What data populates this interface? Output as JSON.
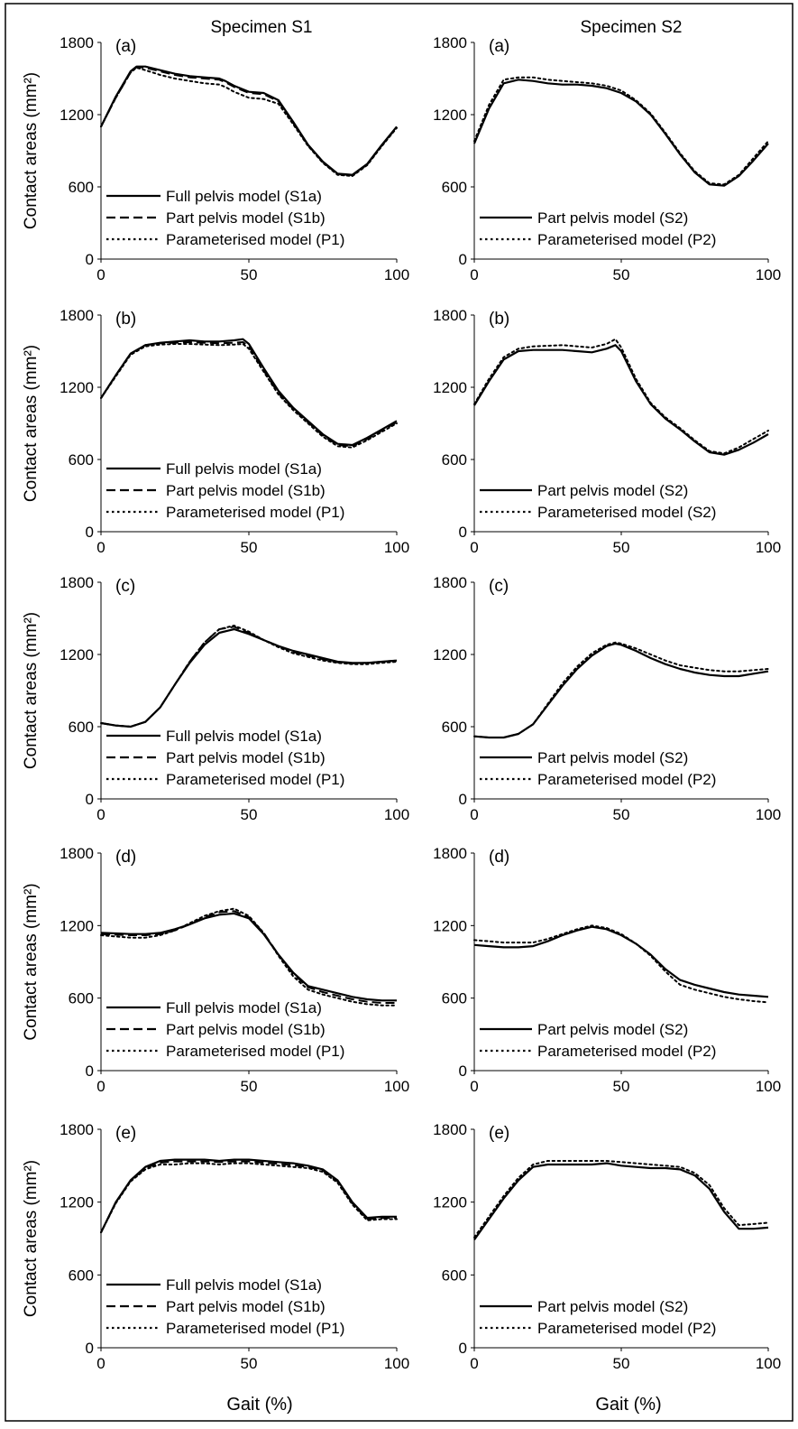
{
  "figure": {
    "column_titles": [
      "Specimen S1",
      "Specimen S2"
    ],
    "ylabel": "Contact areas (mm²)",
    "xlabel": "Gait (%)"
  },
  "chart_data": [
    {
      "type": "line",
      "panel_label": "(a)",
      "xlim": [
        0,
        100
      ],
      "ylim": [
        0,
        1800
      ],
      "xticks": [
        "0",
        "50",
        "100"
      ],
      "yticks": [
        "0",
        "600",
        "1200",
        "1800"
      ],
      "legend_position": "bottom-left",
      "x": [
        0,
        5,
        10,
        12,
        15,
        20,
        25,
        30,
        35,
        40,
        42,
        45,
        50,
        55,
        60,
        65,
        70,
        75,
        80,
        85,
        90,
        95,
        100
      ],
      "series": [
        {
          "name": "Full pelvis model (S1a)",
          "style": "solid",
          "values": [
            1100,
            1350,
            1560,
            1600,
            1600,
            1570,
            1540,
            1520,
            1510,
            1500,
            1480,
            1440,
            1390,
            1380,
            1320,
            1140,
            950,
            810,
            710,
            700,
            790,
            950,
            1100
          ]
        },
        {
          "name": "Part pelvis model (S1b)",
          "style": "dashed",
          "values": [
            1100,
            1340,
            1550,
            1595,
            1590,
            1560,
            1530,
            1510,
            1500,
            1490,
            1470,
            1430,
            1380,
            1370,
            1310,
            1130,
            945,
            805,
            705,
            695,
            785,
            945,
            1095
          ]
        },
        {
          "name": "Parameterised model (P1)",
          "style": "dotted",
          "values": [
            1100,
            1340,
            1550,
            1590,
            1570,
            1530,
            1500,
            1480,
            1460,
            1450,
            1430,
            1390,
            1340,
            1330,
            1290,
            1120,
            940,
            800,
            700,
            690,
            780,
            940,
            1090
          ]
        }
      ]
    },
    {
      "type": "line",
      "panel_label": "(a)",
      "xlim": [
        0,
        100
      ],
      "ylim": [
        0,
        1800
      ],
      "xticks": [
        "0",
        "50",
        "100"
      ],
      "yticks": [
        "0",
        "600",
        "1200",
        "1800"
      ],
      "legend_position": "bottom-left",
      "x": [
        0,
        5,
        10,
        15,
        20,
        25,
        30,
        35,
        40,
        45,
        50,
        55,
        60,
        65,
        70,
        75,
        80,
        85,
        90,
        95,
        100
      ],
      "series": [
        {
          "name": "Part pelvis model (S2)",
          "style": "solid",
          "values": [
            960,
            1250,
            1460,
            1490,
            1480,
            1460,
            1450,
            1450,
            1440,
            1420,
            1380,
            1310,
            1200,
            1040,
            870,
            720,
            620,
            610,
            690,
            820,
            960
          ]
        },
        {
          "name": "Parameterised model (P2)",
          "style": "dotted",
          "values": [
            980,
            1280,
            1490,
            1510,
            1510,
            1490,
            1480,
            1470,
            1460,
            1440,
            1400,
            1320,
            1210,
            1050,
            880,
            730,
            630,
            620,
            700,
            840,
            980
          ]
        }
      ]
    },
    {
      "type": "line",
      "panel_label": "(b)",
      "xlim": [
        0,
        100
      ],
      "ylim": [
        0,
        1800
      ],
      "xticks": [
        "0",
        "50",
        "100"
      ],
      "yticks": [
        "0",
        "600",
        "1200",
        "1800"
      ],
      "legend_position": "bottom-left",
      "x": [
        0,
        5,
        10,
        15,
        20,
        25,
        30,
        35,
        40,
        45,
        48,
        50,
        55,
        60,
        65,
        70,
        75,
        80,
        85,
        90,
        95,
        100
      ],
      "series": [
        {
          "name": "Full pelvis model (S1a)",
          "style": "solid",
          "values": [
            1110,
            1300,
            1480,
            1550,
            1570,
            1580,
            1590,
            1580,
            1580,
            1590,
            1600,
            1560,
            1360,
            1170,
            1030,
            920,
            810,
            730,
            720,
            780,
            850,
            920
          ]
        },
        {
          "name": "Part pelvis model (S1b)",
          "style": "dashed",
          "values": [
            1110,
            1300,
            1480,
            1550,
            1565,
            1570,
            1575,
            1570,
            1565,
            1570,
            1575,
            1540,
            1340,
            1150,
            1020,
            910,
            800,
            720,
            710,
            770,
            840,
            910
          ]
        },
        {
          "name": "Parameterised model (P1)",
          "style": "dotted",
          "values": [
            1110,
            1290,
            1470,
            1540,
            1555,
            1560,
            1560,
            1555,
            1550,
            1555,
            1560,
            1520,
            1330,
            1140,
            1010,
            900,
            790,
            710,
            700,
            760,
            830,
            900
          ]
        }
      ]
    },
    {
      "type": "line",
      "panel_label": "(b)",
      "xlim": [
        0,
        100
      ],
      "ylim": [
        0,
        1800
      ],
      "xticks": [
        "0",
        "50",
        "100"
      ],
      "yticks": [
        "0",
        "600",
        "1200",
        "1800"
      ],
      "legend_position": "bottom-left",
      "x": [
        0,
        5,
        10,
        15,
        20,
        25,
        30,
        35,
        40,
        45,
        48,
        50,
        55,
        60,
        65,
        70,
        75,
        80,
        85,
        90,
        95,
        100
      ],
      "series": [
        {
          "name": "Part pelvis model (S2)",
          "style": "solid",
          "values": [
            1050,
            1250,
            1430,
            1500,
            1510,
            1510,
            1510,
            1500,
            1490,
            1520,
            1550,
            1500,
            1250,
            1060,
            940,
            850,
            750,
            660,
            640,
            680,
            740,
            810
          ]
        },
        {
          "name": "Parameterised model (S2)",
          "style": "dotted",
          "values": [
            1060,
            1270,
            1450,
            1520,
            1540,
            1545,
            1550,
            1540,
            1530,
            1560,
            1600,
            1530,
            1270,
            1070,
            950,
            860,
            760,
            670,
            650,
            700,
            770,
            840
          ]
        }
      ]
    },
    {
      "type": "line",
      "panel_label": "(c)",
      "xlim": [
        0,
        100
      ],
      "ylim": [
        0,
        1800
      ],
      "xticks": [
        "0",
        "50",
        "100"
      ],
      "yticks": [
        "0",
        "600",
        "1200",
        "1800"
      ],
      "legend_position": "bottom-left",
      "x": [
        0,
        5,
        10,
        15,
        20,
        25,
        30,
        35,
        40,
        45,
        50,
        55,
        60,
        65,
        70,
        75,
        80,
        85,
        90,
        95,
        100
      ],
      "series": [
        {
          "name": "Full pelvis model (S1a)",
          "style": "solid",
          "values": [
            630,
            610,
            600,
            640,
            760,
            950,
            1130,
            1280,
            1380,
            1410,
            1370,
            1320,
            1270,
            1230,
            1200,
            1170,
            1140,
            1130,
            1130,
            1140,
            1150
          ]
        },
        {
          "name": "Part pelvis model (S1b)",
          "style": "dashed",
          "values": [
            630,
            610,
            600,
            640,
            760,
            950,
            1140,
            1300,
            1410,
            1430,
            1380,
            1320,
            1270,
            1220,
            1190,
            1160,
            1135,
            1125,
            1130,
            1140,
            1150
          ]
        },
        {
          "name": "Parameterised model (P1)",
          "style": "dotted",
          "values": [
            630,
            610,
            600,
            640,
            760,
            950,
            1140,
            1300,
            1410,
            1440,
            1390,
            1320,
            1260,
            1210,
            1180,
            1150,
            1130,
            1120,
            1120,
            1130,
            1140
          ]
        }
      ]
    },
    {
      "type": "line",
      "panel_label": "(c)",
      "xlim": [
        0,
        100
      ],
      "ylim": [
        0,
        1800
      ],
      "xticks": [
        "0",
        "50",
        "100"
      ],
      "yticks": [
        "0",
        "600",
        "1200",
        "1800"
      ],
      "legend_position": "bottom-left",
      "x": [
        0,
        5,
        10,
        15,
        20,
        25,
        30,
        35,
        40,
        45,
        48,
        50,
        55,
        60,
        65,
        70,
        75,
        80,
        85,
        90,
        95,
        100
      ],
      "series": [
        {
          "name": "Part pelvis model (S2)",
          "style": "solid",
          "values": [
            520,
            510,
            510,
            540,
            620,
            780,
            940,
            1080,
            1190,
            1270,
            1290,
            1280,
            1230,
            1170,
            1120,
            1080,
            1050,
            1030,
            1020,
            1020,
            1040,
            1060
          ]
        },
        {
          "name": "Parameterised model (P2)",
          "style": "dotted",
          "values": [
            520,
            510,
            510,
            540,
            620,
            790,
            960,
            1100,
            1210,
            1280,
            1300,
            1290,
            1250,
            1200,
            1150,
            1110,
            1090,
            1070,
            1060,
            1060,
            1070,
            1080
          ]
        }
      ]
    },
    {
      "type": "line",
      "panel_label": "(d)",
      "xlim": [
        0,
        100
      ],
      "ylim": [
        0,
        1800
      ],
      "xticks": [
        "0",
        "50",
        "100"
      ],
      "yticks": [
        "0",
        "600",
        "1200",
        "1800"
      ],
      "legend_position": "bottom-left",
      "x": [
        0,
        5,
        10,
        15,
        20,
        25,
        30,
        35,
        40,
        45,
        50,
        55,
        60,
        65,
        70,
        75,
        80,
        85,
        90,
        95,
        100
      ],
      "series": [
        {
          "name": "Full pelvis model (S1a)",
          "style": "solid",
          "values": [
            1140,
            1135,
            1130,
            1130,
            1140,
            1170,
            1210,
            1260,
            1290,
            1300,
            1260,
            1130,
            960,
            810,
            700,
            670,
            640,
            610,
            590,
            580,
            580
          ]
        },
        {
          "name": "Part pelvis model (S1b)",
          "style": "dashed",
          "values": [
            1130,
            1125,
            1120,
            1120,
            1130,
            1160,
            1210,
            1270,
            1310,
            1320,
            1270,
            1140,
            960,
            800,
            690,
            650,
            620,
            590,
            570,
            560,
            560
          ]
        },
        {
          "name": "Parameterised model (P1)",
          "style": "dotted",
          "values": [
            1120,
            1110,
            1100,
            1100,
            1120,
            1160,
            1220,
            1280,
            1320,
            1340,
            1280,
            1140,
            950,
            780,
            670,
            630,
            600,
            570,
            550,
            540,
            540
          ]
        }
      ]
    },
    {
      "type": "line",
      "panel_label": "(d)",
      "xlim": [
        0,
        100
      ],
      "ylim": [
        0,
        1800
      ],
      "xticks": [
        "0",
        "50",
        "100"
      ],
      "yticks": [
        "0",
        "600",
        "1200",
        "1800"
      ],
      "legend_position": "bottom-left",
      "x": [
        0,
        5,
        10,
        15,
        20,
        25,
        30,
        35,
        40,
        45,
        50,
        55,
        60,
        65,
        70,
        75,
        80,
        85,
        90,
        95,
        100
      ],
      "series": [
        {
          "name": "Part pelvis model (S2)",
          "style": "solid",
          "values": [
            1040,
            1030,
            1020,
            1020,
            1030,
            1070,
            1120,
            1160,
            1190,
            1170,
            1120,
            1050,
            960,
            840,
            750,
            710,
            680,
            650,
            630,
            620,
            610
          ]
        },
        {
          "name": "Parameterised model (P2)",
          "style": "dotted",
          "values": [
            1080,
            1070,
            1060,
            1060,
            1060,
            1090,
            1130,
            1170,
            1200,
            1180,
            1130,
            1050,
            950,
            820,
            710,
            670,
            640,
            610,
            590,
            575,
            565
          ]
        }
      ]
    },
    {
      "type": "line",
      "panel_label": "(e)",
      "xlim": [
        0,
        100
      ],
      "ylim": [
        0,
        1800
      ],
      "xticks": [
        "0",
        "50",
        "100"
      ],
      "yticks": [
        "0",
        "600",
        "1200",
        "1800"
      ],
      "legend_position": "bottom-left",
      "x": [
        0,
        5,
        10,
        15,
        20,
        25,
        30,
        35,
        40,
        45,
        50,
        55,
        60,
        65,
        70,
        75,
        80,
        85,
        90,
        95,
        100
      ],
      "series": [
        {
          "name": "Full pelvis model (S1a)",
          "style": "solid",
          "values": [
            950,
            1200,
            1380,
            1490,
            1540,
            1550,
            1550,
            1550,
            1540,
            1550,
            1550,
            1540,
            1530,
            1520,
            1500,
            1470,
            1380,
            1200,
            1070,
            1080,
            1080
          ]
        },
        {
          "name": "Part pelvis model (S1b)",
          "style": "dashed",
          "values": [
            950,
            1195,
            1375,
            1480,
            1525,
            1535,
            1535,
            1535,
            1530,
            1535,
            1535,
            1525,
            1515,
            1505,
            1490,
            1460,
            1370,
            1190,
            1060,
            1070,
            1070
          ]
        },
        {
          "name": "Parameterised model (P1)",
          "style": "dotted",
          "values": [
            950,
            1190,
            1370,
            1470,
            1510,
            1510,
            1520,
            1520,
            1510,
            1520,
            1520,
            1510,
            1500,
            1490,
            1480,
            1450,
            1360,
            1180,
            1050,
            1060,
            1060
          ]
        }
      ]
    },
    {
      "type": "line",
      "panel_label": "(e)",
      "xlim": [
        0,
        100
      ],
      "ylim": [
        0,
        1800
      ],
      "xticks": [
        "0",
        "50",
        "100"
      ],
      "yticks": [
        "0",
        "600",
        "1200",
        "1800"
      ],
      "legend_position": "bottom-left",
      "x": [
        0,
        5,
        10,
        15,
        20,
        25,
        30,
        35,
        40,
        45,
        50,
        55,
        60,
        65,
        70,
        75,
        80,
        85,
        90,
        95,
        100
      ],
      "series": [
        {
          "name": "Part pelvis model (S2)",
          "style": "solid",
          "values": [
            890,
            1060,
            1230,
            1380,
            1490,
            1510,
            1510,
            1510,
            1510,
            1520,
            1500,
            1490,
            1480,
            1480,
            1470,
            1420,
            1310,
            1120,
            980,
            980,
            990
          ]
        },
        {
          "name": "Parameterised model (P2)",
          "style": "dotted",
          "values": [
            910,
            1080,
            1250,
            1400,
            1510,
            1540,
            1540,
            1540,
            1540,
            1540,
            1530,
            1520,
            1510,
            1500,
            1490,
            1440,
            1340,
            1150,
            1010,
            1020,
            1030
          ]
        }
      ]
    }
  ]
}
